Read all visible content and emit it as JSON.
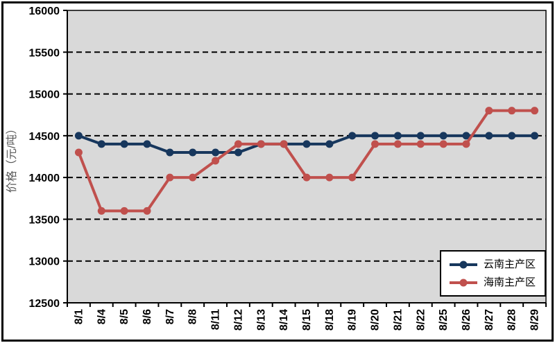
{
  "chart_data": {
    "type": "line",
    "title": "",
    "xlabel": "",
    "ylabel": "价格（元/吨）",
    "categories": [
      "8/1",
      "8/4",
      "8/5",
      "8/6",
      "8/7",
      "8/8",
      "8/11",
      "8/12",
      "8/13",
      "8/14",
      "8/15",
      "8/18",
      "8/19",
      "8/20",
      "8/21",
      "8/22",
      "8/25",
      "8/26",
      "8/27",
      "8/28",
      "8/29"
    ],
    "series": [
      {
        "key": "yunnan",
        "name": "云南主产区",
        "color": "#17375D",
        "values": [
          14500,
          14400,
          14400,
          14400,
          14300,
          14300,
          14300,
          14300,
          14400,
          14400,
          14400,
          14400,
          14500,
          14500,
          14500,
          14500,
          14500,
          14500,
          14500,
          14500,
          14500
        ]
      },
      {
        "key": "hainan",
        "name": "海南主产区",
        "color": "#C0504D",
        "values": [
          14300,
          13600,
          13600,
          13600,
          14000,
          14000,
          14200,
          14400,
          14400,
          14400,
          14000,
          14000,
          14000,
          14400,
          14400,
          14400,
          14400,
          14400,
          14800,
          14800,
          14800
        ]
      }
    ],
    "ylim": [
      12500,
      16000
    ],
    "yticks": [
      16000,
      15500,
      15000,
      14500,
      14000,
      13500,
      13000,
      12500
    ],
    "grid": "horizontal-dashed",
    "grid_color": "#000000",
    "plot_bg": "#D9D9D9",
    "axis_label_color": "#000000",
    "ylabel_color": "#595959",
    "legend_position": "inside-bottom-right"
  }
}
